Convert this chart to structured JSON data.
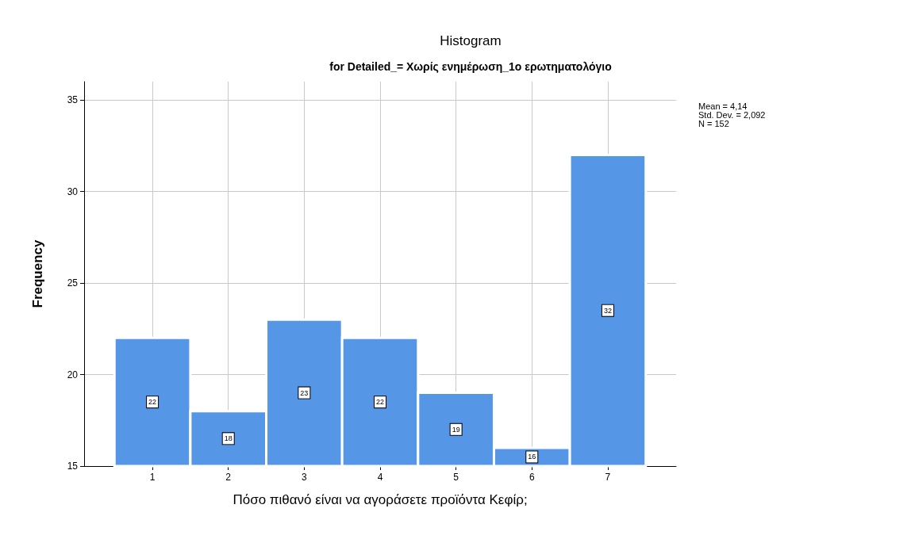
{
  "chart_data": {
    "type": "histogram",
    "title": "Histogram",
    "subtitle": "for Detailed_= Χωρίς ενημέρωση_1ο ερωτηματολόγιο",
    "xlabel": "Πόσο πιθανό είναι να αγοράσετε προϊόντα Κεφίρ;",
    "ylabel": "Frequency",
    "bins": [
      0.5,
      1.5,
      2.5,
      3.5,
      4.5,
      5.5,
      6.5,
      7.5
    ],
    "values": [
      22,
      18,
      23,
      22,
      19,
      16,
      32
    ],
    "color": "#5596e6",
    "xlim": [
      0.1,
      7.9
    ],
    "xticks": [
      1,
      2,
      3,
      4,
      5,
      6,
      7
    ],
    "ylim": [
      15,
      36
    ],
    "yticks": [
      15,
      20,
      25,
      30,
      35
    ],
    "grid": true,
    "data_labels": true,
    "annotations": [
      "Mean = 4,14",
      "Std. Dev. = 2,092",
      "N = 152"
    ]
  }
}
